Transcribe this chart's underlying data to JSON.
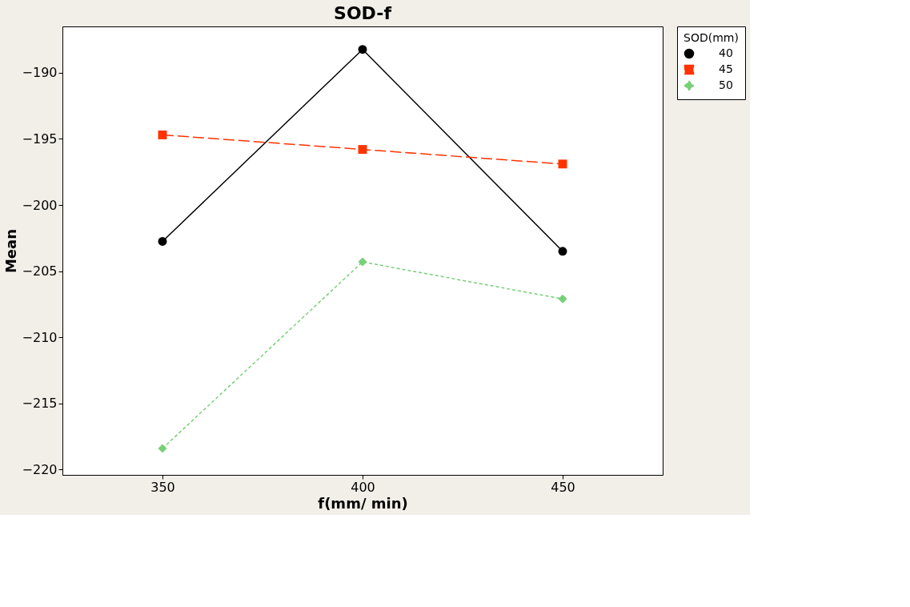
{
  "chart_data": {
    "type": "line",
    "title": "SOD-f",
    "xlabel": "f(mm/ min)",
    "ylabel": "Mean",
    "legend_title": "SOD(mm)",
    "x": [
      350,
      400,
      450
    ],
    "series": [
      {
        "name": "40",
        "color": "#000000",
        "values": [
          -202.75,
          -188.24,
          -203.5
        ],
        "marker": "circle",
        "line_style": "solid"
      },
      {
        "name": "45",
        "color": "#ff3300",
        "values": [
          -194.7,
          -195.8,
          -196.9
        ],
        "marker": "square",
        "line_style": "dashed"
      },
      {
        "name": "50",
        "color": "#77d077",
        "values": [
          -218.4,
          -204.3,
          -207.1
        ],
        "marker": "diamond",
        "line_style": "dotted"
      }
    ],
    "xlim": [
      325,
      475
    ],
    "xticks": [
      350,
      400,
      450
    ],
    "ylim": [
      -220.4,
      -186.5
    ],
    "yticks": [
      -220,
      -215,
      -210,
      -205,
      -200,
      -195,
      -190
    ],
    "grid": false,
    "legend": "top right"
  }
}
